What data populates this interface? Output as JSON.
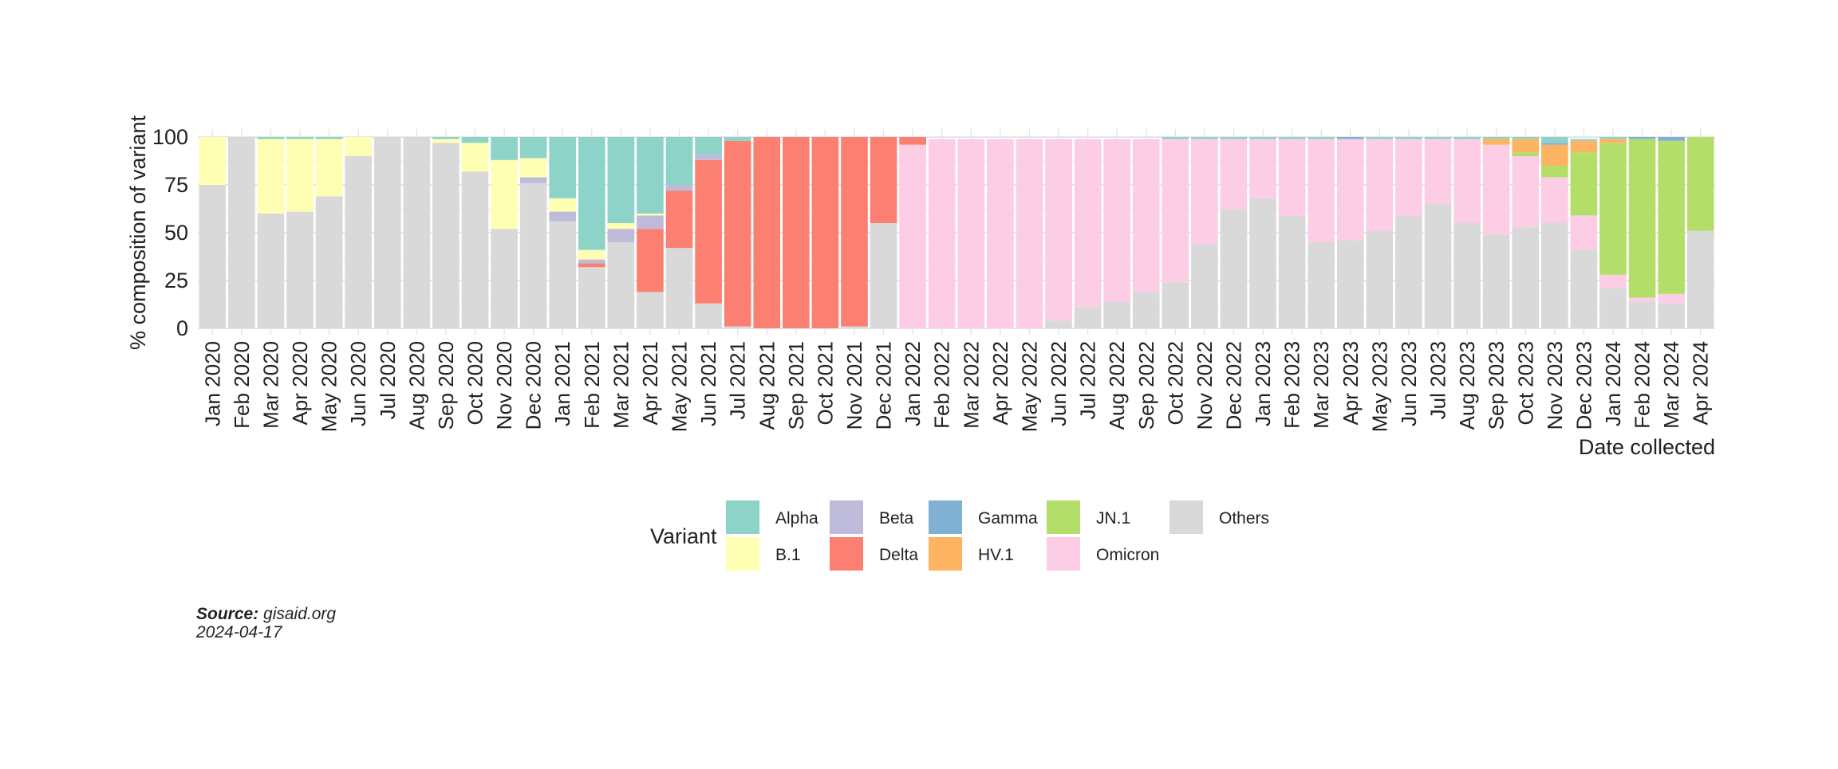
{
  "chart_data": {
    "type": "bar",
    "stacked": true,
    "ylabel": "% composition of variant",
    "xlabel": "Date collected",
    "ylim": [
      0,
      100
    ],
    "yticks": [
      0,
      25,
      50,
      75,
      100
    ],
    "grid": true,
    "legend_position": "bottom",
    "legend_title": "Variant",
    "categories": [
      "Jan 2020",
      "Feb 2020",
      "Mar 2020",
      "Apr 2020",
      "May 2020",
      "Jun 2020",
      "Jul 2020",
      "Aug 2020",
      "Sep 2020",
      "Oct 2020",
      "Nov 2020",
      "Dec 2020",
      "Jan 2021",
      "Feb 2021",
      "Mar 2021",
      "Apr 2021",
      "May 2021",
      "Jun 2021",
      "Jul 2021",
      "Aug 2021",
      "Sep 2021",
      "Oct 2021",
      "Nov 2021",
      "Dec 2021",
      "Jan 2022",
      "Feb 2022",
      "Mar 2022",
      "Apr 2022",
      "May 2022",
      "Jun 2022",
      "Jul 2022",
      "Aug 2022",
      "Sep 2022",
      "Oct 2022",
      "Nov 2022",
      "Dec 2022",
      "Jan 2023",
      "Feb 2023",
      "Mar 2023",
      "Apr 2023",
      "May 2023",
      "Jun 2023",
      "Jul 2023",
      "Aug 2023",
      "Sep 2023",
      "Oct 2023",
      "Nov 2023",
      "Dec 2023",
      "Jan 2024",
      "Feb 2024",
      "Mar 2024",
      "Apr 2024"
    ],
    "stack_order": [
      "Others",
      "Omicron",
      "JN.1",
      "HV.1",
      "Gamma",
      "Delta",
      "Beta",
      "B.1",
      "Alpha"
    ],
    "legend_order": [
      "Alpha",
      "B.1",
      "Beta",
      "Delta",
      "Gamma",
      "HV.1",
      "JN.1",
      "Omicron",
      "Others"
    ],
    "series": [
      {
        "name": "Others",
        "color": "#d9d9d9",
        "values": [
          75,
          100,
          60,
          61,
          69,
          90,
          100,
          100,
          97,
          82,
          52,
          76,
          56,
          32,
          45,
          19,
          42,
          13,
          1,
          0,
          0,
          0,
          1,
          55,
          0,
          0,
          0,
          0,
          0,
          4,
          11,
          14,
          19,
          24,
          44,
          62,
          68,
          59,
          45,
          46,
          51,
          59,
          65,
          55,
          49,
          53,
          55,
          41,
          21,
          14,
          13,
          51
        ]
      },
      {
        "name": "Omicron",
        "color": "#fccde5",
        "values": [
          0,
          0,
          0,
          0,
          0,
          0,
          0,
          0,
          0,
          0,
          0,
          0,
          0,
          0,
          0,
          0,
          0,
          0,
          0,
          0,
          0,
          0,
          0,
          0,
          96,
          99,
          99,
          99,
          99,
          95,
          88,
          85,
          80,
          75,
          55,
          37,
          31,
          40,
          54,
          53,
          48,
          40,
          34,
          44,
          47,
          37,
          24,
          18,
          7,
          2,
          5,
          0
        ]
      },
      {
        "name": "JN.1",
        "color": "#b3de69",
        "values": [
          0,
          0,
          0,
          0,
          0,
          0,
          0,
          0,
          0,
          0,
          0,
          0,
          0,
          0,
          0,
          0,
          0,
          0,
          0,
          0,
          0,
          0,
          0,
          0,
          0,
          0,
          0,
          0,
          0,
          0,
          0,
          0,
          0,
          0,
          0,
          0,
          0,
          0,
          0,
          0,
          0,
          0,
          0,
          0,
          0,
          2,
          6,
          33,
          69,
          83,
          80,
          49
        ]
      },
      {
        "name": "HV.1",
        "color": "#fdb462",
        "values": [
          0,
          0,
          0,
          0,
          0,
          0,
          0,
          0,
          0,
          0,
          0,
          0,
          0,
          0,
          0,
          0,
          0,
          0,
          0,
          0,
          0,
          0,
          0,
          0,
          0,
          0,
          0,
          0,
          0,
          0,
          0,
          0,
          0,
          0,
          0,
          0,
          0,
          0,
          0,
          0,
          0,
          0,
          0,
          0,
          3,
          7,
          11,
          6,
          2,
          0,
          0,
          0
        ]
      },
      {
        "name": "Gamma",
        "color": "#80b1d3",
        "values": [
          0,
          0,
          0,
          0,
          0,
          0,
          0,
          0,
          0,
          0,
          0,
          0,
          0,
          0,
          0,
          0,
          0,
          0,
          0,
          0,
          0,
          0,
          0,
          0,
          0,
          0,
          0,
          0,
          0,
          0,
          0,
          0,
          0,
          0,
          0,
          0,
          0,
          0,
          0,
          1,
          0,
          0,
          0,
          0,
          0,
          0,
          1,
          0,
          0,
          1,
          2,
          0
        ]
      },
      {
        "name": "Delta",
        "color": "#fb8072",
        "values": [
          0,
          0,
          0,
          0,
          0,
          0,
          0,
          0,
          0,
          0,
          0,
          0,
          0,
          2,
          0,
          33,
          30,
          75,
          97,
          100,
          100,
          100,
          99,
          45,
          4,
          0,
          0,
          0,
          0,
          0,
          0,
          0,
          0,
          0,
          0,
          0,
          0,
          0,
          0,
          0,
          0,
          0,
          0,
          0,
          0,
          0,
          0,
          0,
          0,
          0,
          0,
          0
        ]
      },
      {
        "name": "Beta",
        "color": "#bebada",
        "values": [
          0,
          0,
          0,
          0,
          0,
          0,
          0,
          0,
          0,
          0,
          0,
          3,
          5,
          2,
          7,
          7,
          3,
          3,
          0,
          0,
          0,
          0,
          0,
          0,
          0,
          0,
          0,
          0,
          0,
          0,
          0,
          0,
          0,
          0,
          0,
          0,
          0,
          0,
          0,
          0,
          0,
          0,
          0,
          0,
          0,
          0,
          0,
          0,
          0,
          0,
          0,
          0
        ]
      },
      {
        "name": "B.1",
        "color": "#ffffb3",
        "values": [
          25,
          0,
          39,
          38,
          30,
          10,
          0,
          0,
          2,
          15,
          36,
          10,
          7,
          5,
          3,
          1,
          0,
          0,
          0,
          0,
          0,
          0,
          0,
          0,
          0,
          0,
          0,
          0,
          0,
          0,
          0,
          0,
          0,
          0,
          0,
          0,
          0,
          0,
          0,
          0,
          0,
          0,
          0,
          0,
          0,
          0,
          0,
          0,
          0,
          0,
          0,
          0
        ]
      },
      {
        "name": "Alpha",
        "color": "#8dd3c7",
        "values": [
          0,
          0,
          1,
          1,
          1,
          0,
          0,
          0,
          1,
          3,
          12,
          11,
          32,
          59,
          45,
          40,
          25,
          9,
          2,
          0,
          0,
          0,
          0,
          0,
          0,
          0,
          0,
          0,
          0,
          0,
          0,
          0,
          0,
          1,
          1,
          1,
          1,
          1,
          1,
          0,
          1,
          1,
          1,
          1,
          1,
          1,
          3,
          1,
          1,
          0,
          0,
          0
        ]
      }
    ]
  },
  "caption": {
    "source_label": "Source:",
    "source_value": " gisaid.org",
    "date": "2024-04-17"
  }
}
